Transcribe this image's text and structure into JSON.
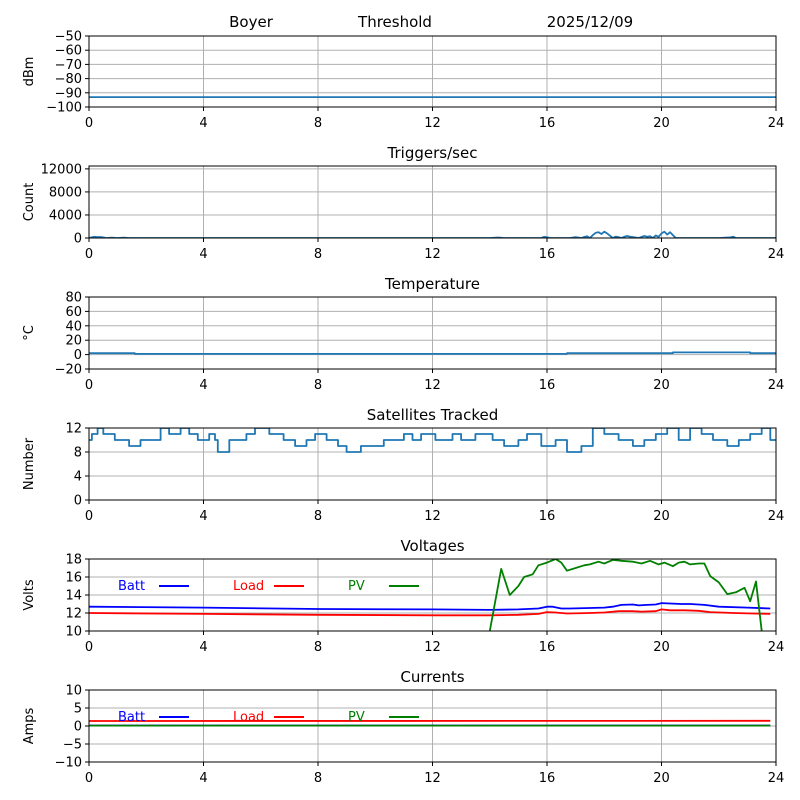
{
  "header": {
    "station": "Boyer",
    "mode": "Threshold",
    "date": "2025/12/09"
  },
  "colors": {
    "signal": "#1f77b4",
    "batt": "#0000ff",
    "load": "#ff0000",
    "pv": "#008000",
    "grid": "#b0b0b0"
  },
  "chart_data": [
    {
      "id": "signal",
      "type": "line",
      "title": "",
      "ylabel": "dBm",
      "xlim": [
        0,
        24
      ],
      "ylim": [
        -100,
        -50
      ],
      "xticks": [
        0,
        4,
        8,
        12,
        16,
        20,
        24
      ],
      "yticks": [
        -50,
        -60,
        -70,
        -80,
        -90,
        -100
      ],
      "ytick_labels": [
        "−50",
        "−60",
        "−70",
        "−80",
        "−90",
        "−100"
      ],
      "grid": true,
      "series": [
        {
          "color_key": "signal",
          "x": [
            0,
            24
          ],
          "y": [
            -93,
            -93
          ]
        }
      ]
    },
    {
      "id": "triggers",
      "type": "line",
      "title": "Triggers/sec",
      "ylabel": "Count",
      "xlim": [
        0,
        24
      ],
      "ylim": [
        0,
        12500
      ],
      "xticks": [
        0,
        4,
        8,
        12,
        16,
        20,
        24
      ],
      "yticks": [
        0,
        4000,
        8000,
        12000
      ],
      "ytick_labels": [
        "0",
        "4000",
        "8000",
        "12000"
      ],
      "grid": true,
      "series": [
        {
          "color_key": "signal",
          "x": [
            0,
            0.1,
            0.2,
            0.3,
            0.4,
            0.5,
            0.6,
            0.8,
            1.0,
            1.2,
            1.4,
            3,
            6,
            10,
            12,
            14,
            14.3,
            14.5,
            15,
            15.8,
            15.9,
            16.0,
            16.1,
            16.3,
            16.8,
            17.0,
            17.2,
            17.3,
            17.4,
            17.5,
            17.6,
            17.7,
            17.8,
            17.9,
            18.0,
            18.1,
            18.2,
            18.3,
            18.4,
            18.5,
            18.6,
            18.7,
            18.8,
            18.9,
            19.0,
            19.2,
            19.4,
            19.5,
            19.6,
            19.7,
            19.8,
            19.9,
            20.0,
            20.1,
            20.2,
            20.3,
            20.4,
            20.5,
            20.6,
            21,
            22,
            22.4,
            22.5,
            22.6,
            23,
            24
          ],
          "y": [
            0,
            120,
            200,
            150,
            180,
            100,
            0,
            60,
            0,
            60,
            0,
            0,
            0,
            0,
            0,
            0,
            80,
            0,
            0,
            0,
            200,
            120,
            0,
            0,
            0,
            150,
            0,
            180,
            300,
            0,
            500,
            900,
            1000,
            700,
            1100,
            800,
            400,
            0,
            250,
            150,
            0,
            200,
            350,
            250,
            150,
            0,
            350,
            200,
            300,
            0,
            450,
            200,
            800,
            1100,
            600,
            1000,
            500,
            0,
            0,
            0,
            0,
            100,
            220,
            0,
            0,
            0
          ]
        }
      ]
    },
    {
      "id": "temperature",
      "type": "line",
      "title": "Temperature",
      "ylabel": "°C",
      "xlim": [
        0,
        24
      ],
      "ylim": [
        -20,
        80
      ],
      "xticks": [
        0,
        4,
        8,
        12,
        16,
        20,
        24
      ],
      "yticks": [
        80,
        60,
        40,
        20,
        0,
        -20
      ],
      "ytick_labels": [
        "80",
        "60",
        "40",
        "20",
        "0",
        "−20"
      ],
      "grid": true,
      "series": [
        {
          "color_key": "signal",
          "x": [
            0,
            1.6,
            1.6,
            16.7,
            16.7,
            20.4,
            20.4,
            23.1,
            23.1,
            24
          ],
          "y": [
            2,
            2,
            1,
            1,
            2,
            2,
            3,
            3,
            2,
            2
          ]
        }
      ]
    },
    {
      "id": "satellites",
      "type": "line",
      "title": "Satellites Tracked",
      "ylabel": "Number",
      "xlim": [
        0,
        24
      ],
      "ylim": [
        0,
        12
      ],
      "xticks": [
        0,
        4,
        8,
        12,
        16,
        20,
        24
      ],
      "yticks": [
        0,
        4,
        8,
        12
      ],
      "ytick_labels": [
        "0",
        "4",
        "8",
        "12"
      ],
      "grid": true,
      "series": [
        {
          "color_key": "signal",
          "x": [
            0,
            0.1,
            0.1,
            0.3,
            0.3,
            0.5,
            0.5,
            0.9,
            0.9,
            1.4,
            1.4,
            1.8,
            1.8,
            2.5,
            2.5,
            2.8,
            2.8,
            3.2,
            3.2,
            3.5,
            3.5,
            3.8,
            3.8,
            4.2,
            4.2,
            4.4,
            4.4,
            4.5,
            4.5,
            4.9,
            4.9,
            5.5,
            5.5,
            5.8,
            5.8,
            6.3,
            6.3,
            6.8,
            6.8,
            7.2,
            7.2,
            7.6,
            7.6,
            7.9,
            7.9,
            8.3,
            8.3,
            8.7,
            8.7,
            9.0,
            9.0,
            9.5,
            9.5,
            10.3,
            10.3,
            11.0,
            11.0,
            11.3,
            11.3,
            11.6,
            11.6,
            12.1,
            12.1,
            12.7,
            12.7,
            13.0,
            13.0,
            13.5,
            13.5,
            14.1,
            14.1,
            14.5,
            14.5,
            15.0,
            15.0,
            15.3,
            15.3,
            15.8,
            15.8,
            16.3,
            16.3,
            16.7,
            16.7,
            17.2,
            17.2,
            17.6,
            17.6,
            18.0,
            18.0,
            18.5,
            18.5,
            19.0,
            19.0,
            19.4,
            19.4,
            19.8,
            19.8,
            20.2,
            20.2,
            20.6,
            20.6,
            21.0,
            21.0,
            21.4,
            21.4,
            21.8,
            21.8,
            22.3,
            22.3,
            22.7,
            22.7,
            23.1,
            23.1,
            23.5,
            23.5,
            23.8,
            23.8,
            24
          ],
          "y": [
            10,
            10,
            11,
            11,
            12,
            12,
            11,
            11,
            10,
            10,
            9,
            9,
            10,
            10,
            12,
            12,
            11,
            11,
            12,
            12,
            11,
            11,
            10,
            10,
            11,
            11,
            10,
            10,
            8,
            8,
            10,
            10,
            11,
            11,
            12,
            12,
            11,
            11,
            10,
            10,
            9,
            9,
            10,
            10,
            11,
            11,
            10,
            10,
            9,
            9,
            8,
            8,
            9,
            9,
            10,
            10,
            11,
            11,
            10,
            10,
            11,
            11,
            10,
            10,
            11,
            11,
            10,
            10,
            11,
            11,
            10,
            10,
            9,
            9,
            10,
            10,
            11,
            11,
            9,
            9,
            10,
            10,
            8,
            8,
            9,
            9,
            12,
            12,
            11,
            11,
            10,
            10,
            9,
            9,
            10,
            10,
            11,
            11,
            12,
            12,
            10,
            10,
            12,
            12,
            11,
            11,
            10,
            10,
            9,
            9,
            10,
            10,
            11,
            11,
            12,
            12,
            10,
            10
          ]
        }
      ]
    },
    {
      "id": "voltages",
      "type": "line",
      "title": "Voltages",
      "ylabel": "Volts",
      "xlim": [
        0,
        24
      ],
      "ylim": [
        10,
        18
      ],
      "xticks": [
        0,
        4,
        8,
        12,
        16,
        20,
        24
      ],
      "yticks": [
        10,
        12,
        14,
        16,
        18
      ],
      "ytick_labels": [
        "10",
        "12",
        "14",
        "16",
        "18"
      ],
      "grid": true,
      "legend_position": "top-left",
      "series": [
        {
          "name": "Batt",
          "color_key": "batt",
          "x": [
            0,
            4,
            8,
            12,
            14,
            15,
            15.7,
            16.0,
            16.2,
            16.5,
            16.8,
            17.5,
            18,
            18.3,
            18.6,
            19.0,
            19.2,
            19.5,
            19.8,
            20.0,
            20.3,
            20.7,
            21.0,
            21.5,
            22,
            23,
            23.8
          ],
          "y": [
            12.7,
            12.6,
            12.45,
            12.4,
            12.35,
            12.4,
            12.5,
            12.7,
            12.7,
            12.5,
            12.5,
            12.55,
            12.6,
            12.7,
            12.9,
            12.95,
            12.85,
            12.9,
            12.95,
            13.1,
            13.05,
            13.0,
            13.0,
            12.9,
            12.7,
            12.6,
            12.5
          ]
        },
        {
          "name": "Load",
          "color_key": "load",
          "x": [
            0,
            4,
            8,
            12,
            14,
            15,
            15.7,
            16.0,
            16.3,
            16.7,
            17.5,
            18,
            18.5,
            19.0,
            19.3,
            19.8,
            20.0,
            20.3,
            20.8,
            21.3,
            21.7,
            22.5,
            23.8
          ],
          "y": [
            12.0,
            11.9,
            11.8,
            11.75,
            11.75,
            11.8,
            11.9,
            12.1,
            12.05,
            11.95,
            12.0,
            12.05,
            12.2,
            12.2,
            12.15,
            12.2,
            12.4,
            12.3,
            12.3,
            12.25,
            12.1,
            12.0,
            11.9
          ]
        },
        {
          "name": "PV",
          "color_key": "pv",
          "x": [
            14.0,
            14.4,
            14.7,
            15.0,
            15.2,
            15.5,
            15.7,
            16.0,
            16.3,
            16.5,
            16.7,
            17.0,
            17.3,
            17.5,
            17.8,
            18.0,
            18.3,
            18.6,
            19.0,
            19.3,
            19.6,
            19.9,
            20.1,
            20.4,
            20.6,
            20.8,
            21.0,
            21.3,
            21.5,
            21.7,
            22.0,
            22.3,
            22.6,
            22.9,
            23.1,
            23.3,
            23.5
          ],
          "y": [
            10.0,
            16.9,
            14.0,
            15.0,
            16.0,
            16.3,
            17.3,
            17.6,
            18.0,
            17.6,
            16.7,
            17.0,
            17.3,
            17.4,
            17.7,
            17.5,
            17.9,
            17.8,
            17.7,
            17.5,
            17.8,
            17.4,
            17.6,
            17.2,
            17.6,
            17.7,
            17.4,
            17.5,
            17.5,
            16.1,
            15.4,
            14.1,
            14.3,
            14.8,
            13.3,
            15.5,
            10.0
          ]
        }
      ]
    },
    {
      "id": "currents",
      "type": "line",
      "title": "Currents",
      "ylabel": "Amps",
      "xlim": [
        0,
        24
      ],
      "ylim": [
        -10,
        10
      ],
      "xticks": [
        0,
        4,
        8,
        12,
        16,
        20,
        24
      ],
      "yticks": [
        10,
        5,
        0,
        -5,
        -10
      ],
      "ytick_labels": [
        "10",
        "5",
        "0",
        "−5",
        "−10"
      ],
      "grid": true,
      "legend_position": "top-left",
      "series": [
        {
          "name": "Batt",
          "color_key": "batt",
          "x": [
            0,
            23.8
          ],
          "y": [
            0.15,
            0.15
          ]
        },
        {
          "name": "Load",
          "color_key": "load",
          "x": [
            0,
            23.8
          ],
          "y": [
            1.4,
            1.45
          ]
        },
        {
          "name": "PV",
          "color_key": "pv",
          "x": [
            0,
            23.8
          ],
          "y": [
            0.1,
            0.1
          ]
        }
      ]
    }
  ]
}
